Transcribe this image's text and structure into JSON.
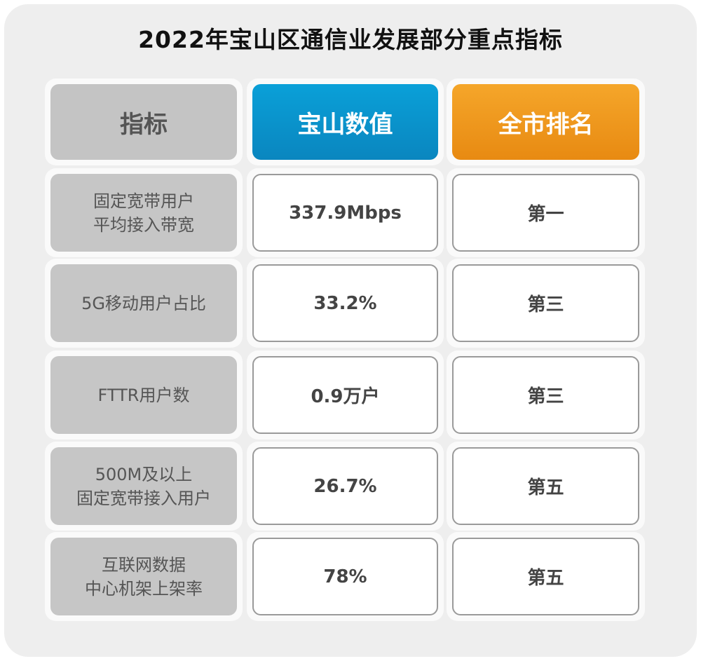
{
  "title": "2022年宝山区通信业发展部分重点指标",
  "headers": {
    "indicator": "指标",
    "value": "宝山数值",
    "rank": "全市排名"
  },
  "colors": {
    "value_header": "#0a96cc",
    "rank_header": "#f09a1e",
    "indicator_cell": "#c6c6c6"
  },
  "rows": [
    {
      "indicator_line1": "固定宽带用户",
      "indicator_line2": "平均接入带宽",
      "value": "337.9Mbps",
      "rank": "第一"
    },
    {
      "indicator_line1": "5G移动用户占比",
      "indicator_line2": "",
      "value": "33.2%",
      "rank": "第三"
    },
    {
      "indicator_line1": "FTTR用户数",
      "indicator_line2": "",
      "value": "0.9万户",
      "rank": "第三"
    },
    {
      "indicator_line1": "500M及以上",
      "indicator_line2": "固定宽带接入用户",
      "value": "26.7%",
      "rank": "第五"
    },
    {
      "indicator_line1": "互联网数据",
      "indicator_line2": "中心机架上架率",
      "value": "78%",
      "rank": "第五"
    }
  ]
}
